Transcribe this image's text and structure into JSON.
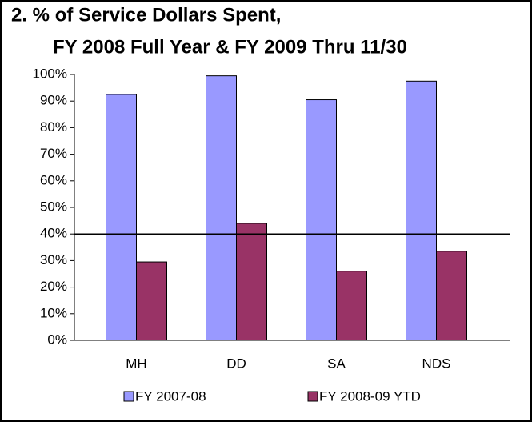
{
  "chart_data": {
    "type": "bar",
    "title": [
      "2.  % of Service Dollars Spent,",
      "FY 2008 Full Year & FY 2009 Thru 11/30"
    ],
    "categories": [
      "MH",
      "DD",
      "SA",
      "NDS"
    ],
    "series": [
      {
        "name": "FY 2007-08",
        "color": "#9999ff",
        "values": [
          92.5,
          99.5,
          90.5,
          97.5
        ]
      },
      {
        "name": "FY 2008-09 YTD",
        "color": "#993366",
        "values": [
          29.5,
          44,
          26,
          33.5
        ]
      }
    ],
    "reference_line": 40,
    "ylim": [
      0,
      100
    ],
    "yticks": [
      {
        "value": 0,
        "label": "0%"
      },
      {
        "value": 10,
        "label": "10%"
      },
      {
        "value": 20,
        "label": "20%"
      },
      {
        "value": 30,
        "label": "30%"
      },
      {
        "value": 40,
        "label": "40%"
      },
      {
        "value": 50,
        "label": "50%"
      },
      {
        "value": 60,
        "label": "60%"
      },
      {
        "value": 70,
        "label": "70%"
      },
      {
        "value": 80,
        "label": "80%"
      },
      {
        "value": 90,
        "label": "90%"
      },
      {
        "value": 100,
        "label": "100%"
      }
    ],
    "grid": false,
    "legend": "bottom"
  }
}
